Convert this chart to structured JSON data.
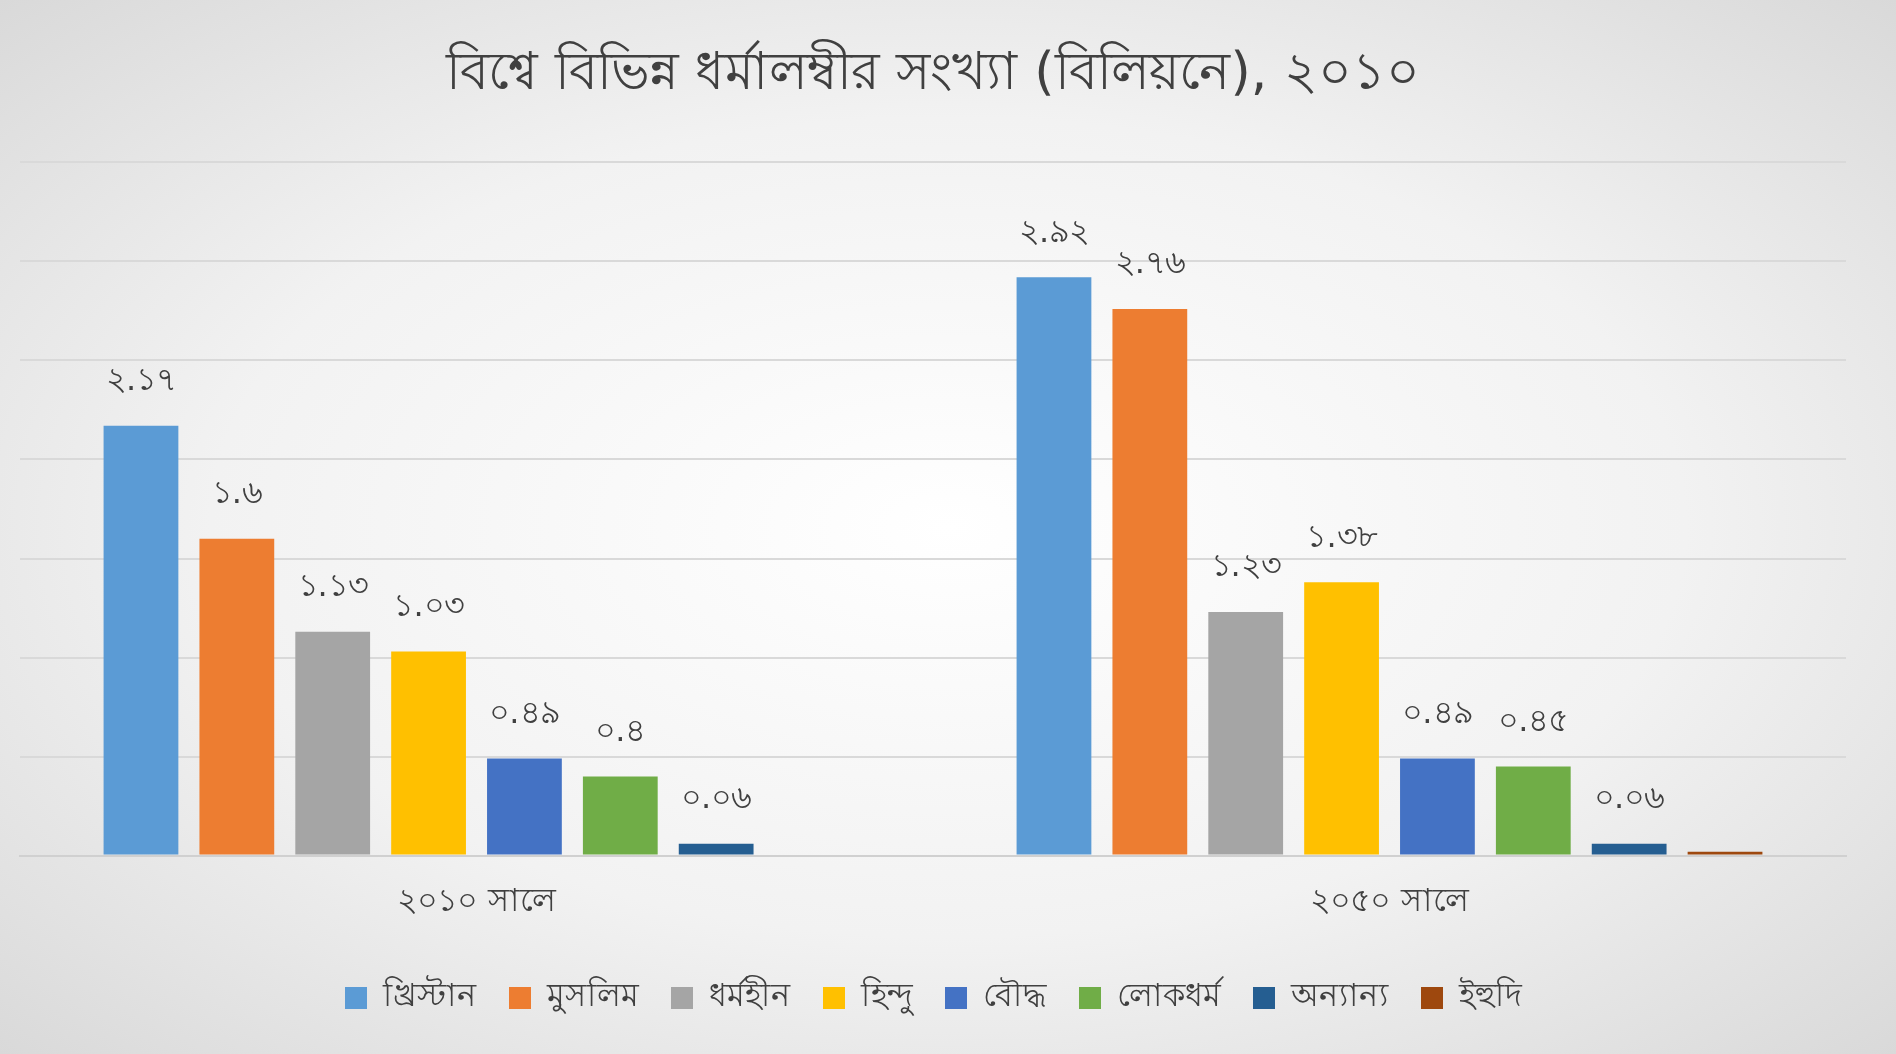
{
  "chart_data": {
    "type": "bar",
    "title": "বিশ্বে বিভিন্ন ধর্মালম্বীর সংখ্যা (বিলিয়নে), ২০১০",
    "categories": [
      "২০১০ সালে",
      "২০৫০ সালে"
    ],
    "series": [
      {
        "name": "খ্রিস্টান",
        "color": "#5b9bd5",
        "values": [
          2.17,
          2.92
        ],
        "value_labels": [
          "২.১৭",
          "২.৯২"
        ]
      },
      {
        "name": "মুসলিম",
        "color": "#ed7d31",
        "values": [
          1.6,
          2.76
        ],
        "value_labels": [
          "১.৬",
          "২.৭৬"
        ]
      },
      {
        "name": "ধর্মহীন",
        "color": "#a5a5a5",
        "values": [
          1.13,
          1.23
        ],
        "value_labels": [
          "১.১৩",
          "১.২৩"
        ]
      },
      {
        "name": "হিন্দু",
        "color": "#ffc000",
        "values": [
          1.03,
          1.38
        ],
        "value_labels": [
          "১.০৩",
          "১.৩৮"
        ]
      },
      {
        "name": "বৌদ্ধ",
        "color": "#4472c4",
        "values": [
          0.49,
          0.49
        ],
        "value_labels": [
          "০.৪৯",
          "০.৪৯"
        ]
      },
      {
        "name": "লোকধর্ম",
        "color": "#70ad47",
        "values": [
          0.4,
          0.45
        ],
        "value_labels": [
          "০.৪",
          "০.৪৫"
        ]
      },
      {
        "name": "অন্যান্য",
        "color": "#255e91",
        "values": [
          0.06,
          0.06
        ],
        "value_labels": [
          "০.০৬",
          "০.০৬"
        ]
      },
      {
        "name": "ইহুদি",
        "color": "#9e480e",
        "values": [
          null,
          0.02
        ],
        "value_labels": [
          null,
          null
        ]
      }
    ],
    "ylim": [
      0,
      3.5
    ],
    "yticks": [
      {
        "value": 0,
        "label": null
      },
      {
        "value": 0.5,
        "label": null
      },
      {
        "value": 1,
        "label": null
      },
      {
        "value": 1.5,
        "label": null
      },
      {
        "value": 2,
        "label": null
      },
      {
        "value": 2.5,
        "label": null
      },
      {
        "value": 3,
        "label": null
      },
      {
        "value": 3.5,
        "label": null
      }
    ],
    "tick_labels": "x",
    "grid": "y",
    "legend": "bottom"
  }
}
